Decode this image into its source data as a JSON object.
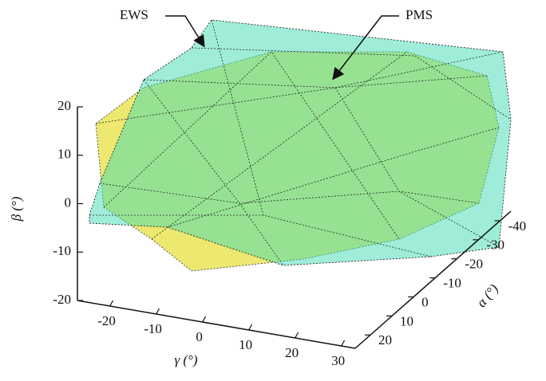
{
  "chart_data": {
    "type": "polytope3d",
    "ylabel": "β (°)",
    "xlabel": "γ (°)",
    "zlabel": "α (°)",
    "ylim": [
      -20,
      20
    ],
    "yticks": [
      -20,
      -10,
      0,
      10,
      20
    ],
    "xlim": [
      -27,
      33
    ],
    "xticks": [
      -20,
      -10,
      0,
      10,
      20,
      30
    ],
    "zlim": [
      27,
      -45
    ],
    "zticks": [
      20,
      10,
      0,
      -10,
      -20,
      -30,
      -40
    ],
    "series": [
      {
        "name": "PMS",
        "color": "#e6e040"
      },
      {
        "name": "EWS",
        "color": "#3fdcb4"
      }
    ]
  }
}
